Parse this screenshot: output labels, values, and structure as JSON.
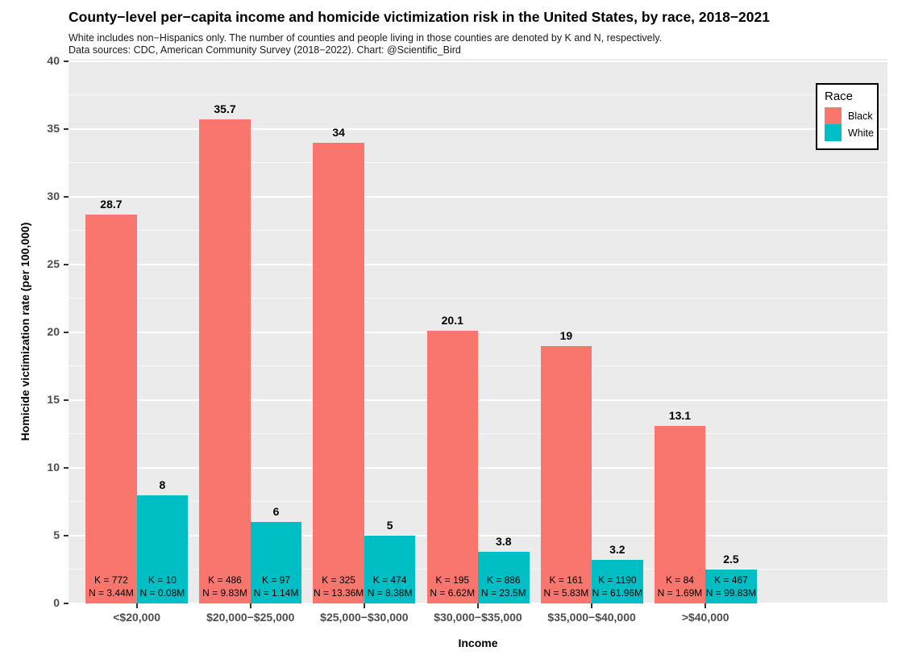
{
  "chart_data": {
    "type": "bar",
    "title": "County−level per−capita income and homicide victimization risk in the United States, by race, 2018−2021",
    "subtitle_line1": "White includes non−Hispanics only. The number of counties and people living in those counties are denoted by K and N, respectively.",
    "subtitle_line2": "Data sources: CDC, American Community Survey (2018−2022). Chart: @Scientific_Bird",
    "xlabel": "Income",
    "ylabel": "Homicide victimization rate (per 100,000)",
    "ylim": [
      0,
      40
    ],
    "y_major_ticks": [
      0,
      5,
      10,
      15,
      20,
      25,
      30,
      35,
      40
    ],
    "y_minor_ticks": [
      2.5,
      7.5,
      12.5,
      17.5,
      22.5,
      27.5,
      32.5,
      37.5
    ],
    "grid": "on",
    "panel_background": "#EBEBEB",
    "gridline_color": "#FFFFFF",
    "categories": [
      "<$20,000",
      "$20,000−$25,000",
      "$25,000−$30,000",
      "$30,000−$35,000",
      "$35,000−$40,000",
      ">$40,000"
    ],
    "legend": {
      "title": "Race",
      "position": "top-right"
    },
    "series": [
      {
        "name": "Black",
        "color": "#F8766D",
        "values": [
          28.7,
          35.7,
          34,
          20.1,
          19,
          13.1
        ],
        "value_labels": [
          "28.7",
          "35.7",
          "34",
          "20.1",
          "19",
          "13.1"
        ],
        "counties_K": [
          "772",
          "486",
          "325",
          "195",
          "161",
          "84"
        ],
        "population_N": [
          "3.44M",
          "9.83M",
          "13.36M",
          "6.62M",
          "5.83M",
          "1.69M"
        ]
      },
      {
        "name": "White",
        "color": "#00BFC4",
        "values": [
          8,
          6,
          5,
          3.8,
          3.2,
          2.5
        ],
        "value_labels": [
          "8",
          "6",
          "5",
          "3.8",
          "3.2",
          "2.5"
        ],
        "counties_K": [
          "10",
          "97",
          "474",
          "886",
          "1190",
          "467"
        ],
        "population_N": [
          "0.08M",
          "1.14M",
          "8.38M",
          "23.5M",
          "61.96M",
          "99.83M"
        ]
      }
    ],
    "annotation_format": {
      "counties_prefix": "K = ",
      "population_prefix": "N = "
    }
  }
}
